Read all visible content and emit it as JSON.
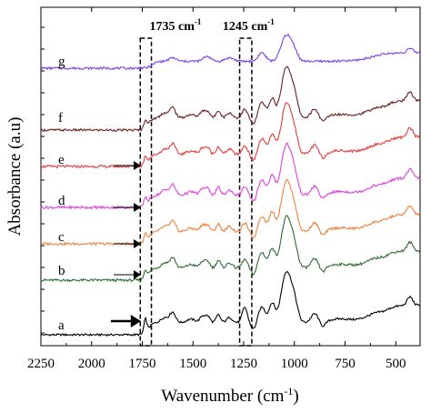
{
  "chart_data": {
    "type": "line",
    "title": "",
    "xlabel": "Wavenumber (cm",
    "xlabel_sup": "-1",
    "xlabel_suffix": ")",
    "ylabel": "Absorbance (a.u)",
    "xlim": [
      2250,
      380
    ],
    "x_reversed": true,
    "y_ticks_shown": false,
    "grid": false,
    "legend": "none",
    "x_ticks": [
      2250,
      2000,
      1750,
      1500,
      1250,
      1000,
      750,
      500
    ],
    "x_tick_labels": [
      "2250",
      "2000",
      "1750",
      "1500",
      "1250",
      "1000",
      "750",
      "500"
    ],
    "annotations": [
      {
        "text": "1735 cm",
        "sup": "-1",
        "band": [
          1760,
          1705
        ]
      },
      {
        "text": "1245 cm",
        "sup": "-1",
        "band": [
          1270,
          1210
        ]
      }
    ],
    "series": [
      {
        "label": "a",
        "color": "#000000",
        "offset": 0,
        "arrow": "large",
        "profile": "a",
        "noise": 1.2
      },
      {
        "label": "b",
        "color": "#2e6b2e",
        "offset": 1,
        "arrow": "small",
        "profile": "std",
        "noise": 1.4
      },
      {
        "label": "c",
        "color": "#f0803c",
        "offset": 2,
        "arrow": "small",
        "profile": "std",
        "noise": 1.4
      },
      {
        "label": "d",
        "color": "#e040e0",
        "offset": 3,
        "arrow": "small",
        "profile": "std",
        "noise": 1.5
      },
      {
        "label": "e",
        "color": "#e83a3a",
        "offset": 4,
        "arrow": "small",
        "profile": "std",
        "noise": 1.5
      },
      {
        "label": "f",
        "color": "#6b1f1f",
        "offset": 5,
        "arrow": "none",
        "profile": "std",
        "noise": 1.3
      },
      {
        "label": "g",
        "color": "#7a40e8",
        "offset": 6,
        "arrow": "none",
        "profile": "g",
        "noise": 1.3
      }
    ]
  }
}
